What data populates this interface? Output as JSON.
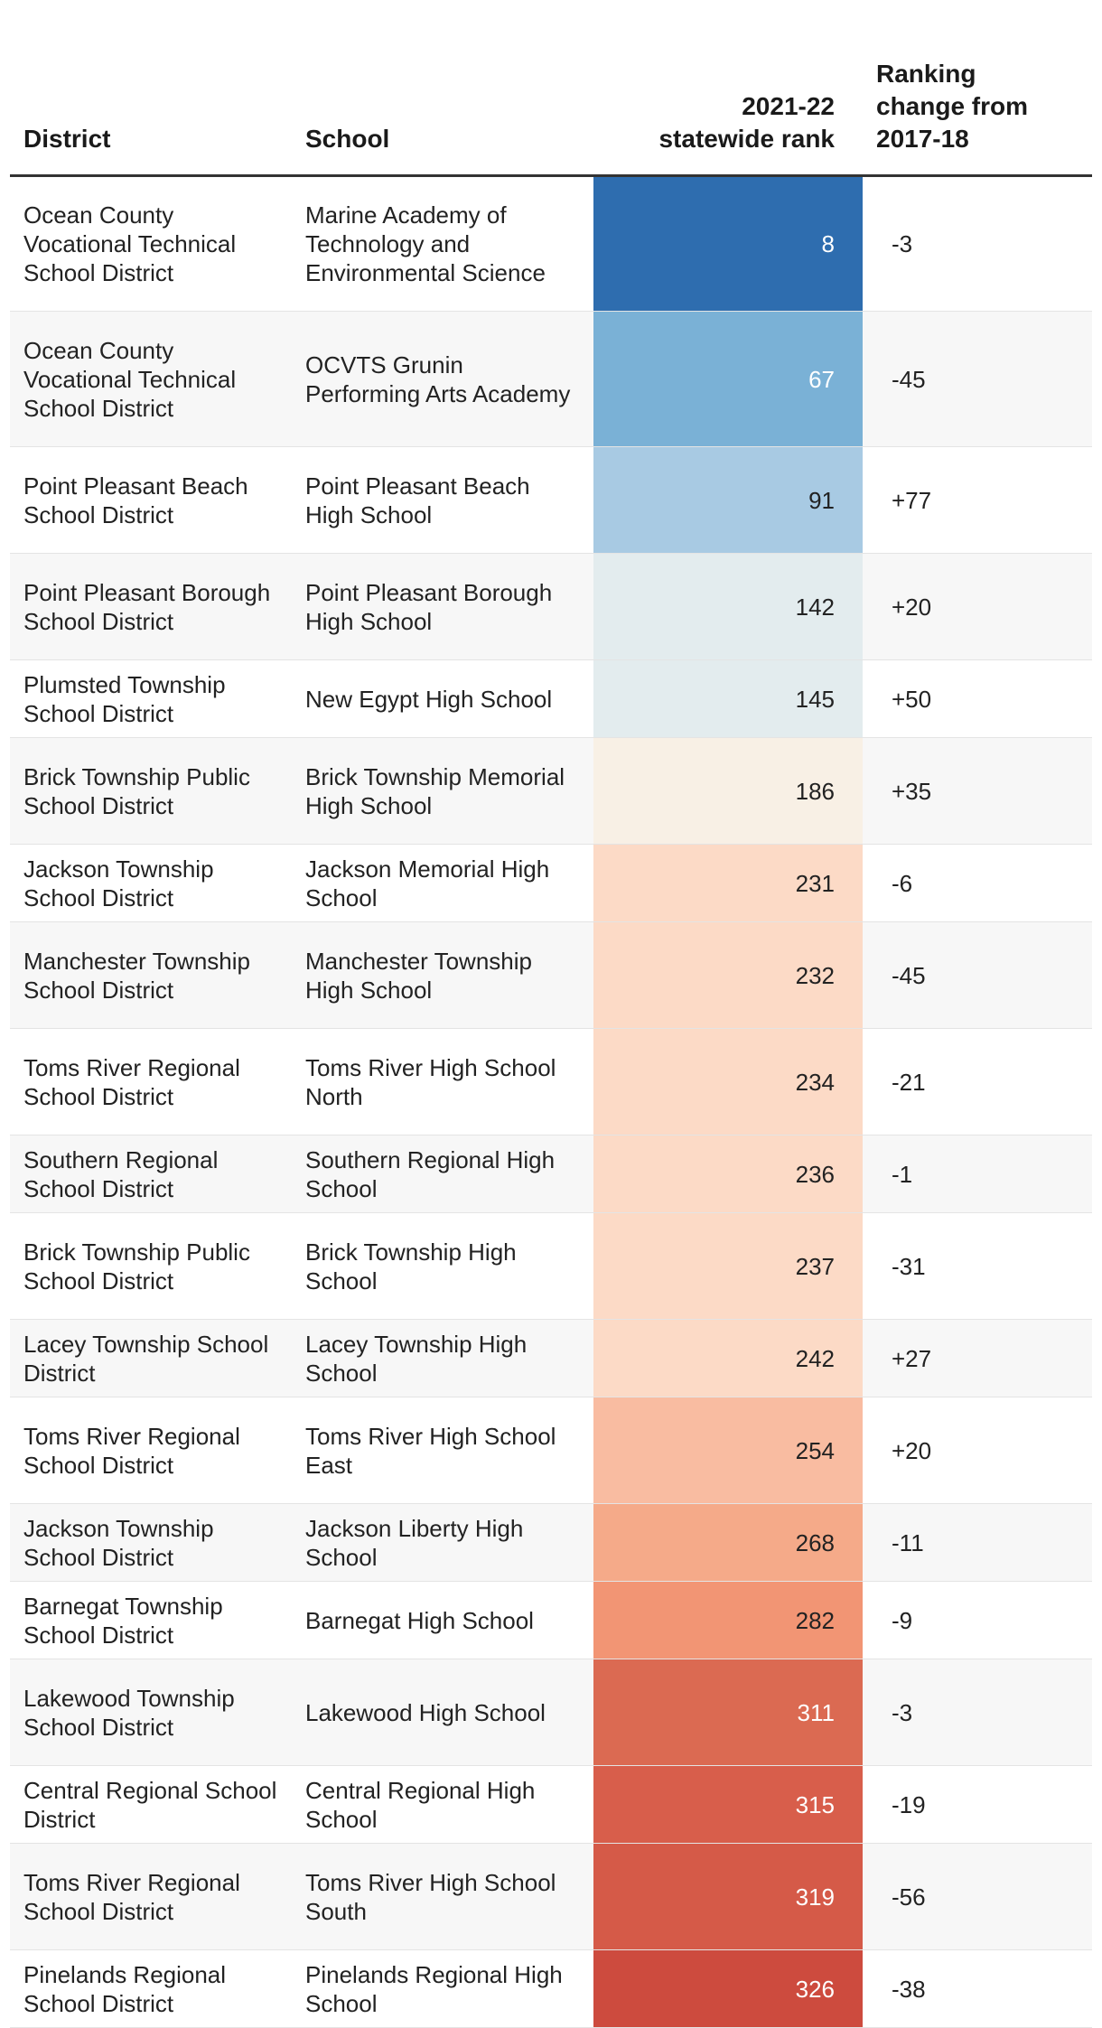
{
  "table": {
    "headers": {
      "district": "District",
      "school": "School",
      "rank_line1": "2021-22",
      "rank_line2": "statewide rank",
      "change_line1": "Ranking",
      "change_line2": "change from",
      "change_line3": "2017-18"
    },
    "rows": [
      {
        "district": "Ocean County Vocational Technical School District",
        "school": "Marine Academy of Technology and Environmental Science",
        "rank": "8",
        "change": "-3",
        "color": "#2e6daf",
        "text_color": "#ffffff"
      },
      {
        "district": "Ocean County Vocational Technical School District",
        "school": "OCVTS Grunin Performing Arts Academy",
        "rank": "67",
        "change": "-45",
        "color": "#7ab1d6",
        "text_color": "#ffffff"
      },
      {
        "district": "Point Pleasant Beach School District",
        "school": "Point Pleasant Beach High School",
        "rank": "91",
        "change": "+77",
        "color": "#a8cae3",
        "text_color": "#222222"
      },
      {
        "district": "Point Pleasant Borough School District",
        "school": "Point Pleasant Borough High School",
        "rank": "142",
        "change": "+20",
        "color": "#e3ecee",
        "text_color": "#222222"
      },
      {
        "district": "Plumsted Township School District",
        "school": "New Egypt High School",
        "rank": "145",
        "change": "+50",
        "color": "#e3ecee",
        "text_color": "#222222"
      },
      {
        "district": "Brick Township Public School District",
        "school": "Brick Township Memorial High School",
        "rank": "186",
        "change": "+35",
        "color": "#f8f0e5",
        "text_color": "#222222"
      },
      {
        "district": "Jackson Township School District",
        "school": "Jackson Memorial High School",
        "rank": "231",
        "change": "-6",
        "color": "#fcdac6",
        "text_color": "#222222"
      },
      {
        "district": "Manchester Township School District",
        "school": "Manchester Township High School",
        "rank": "232",
        "change": "-45",
        "color": "#fcdac6",
        "text_color": "#222222"
      },
      {
        "district": "Toms River Regional School District",
        "school": "Toms River High School North",
        "rank": "234",
        "change": "-21",
        "color": "#fcdac6",
        "text_color": "#222222"
      },
      {
        "district": "Southern Regional School District",
        "school": "Southern Regional High School",
        "rank": "236",
        "change": "-1",
        "color": "#fcdac6",
        "text_color": "#222222"
      },
      {
        "district": "Brick Township Public School District",
        "school": "Brick Township High School",
        "rank": "237",
        "change": "-31",
        "color": "#fcdac6",
        "text_color": "#222222"
      },
      {
        "district": "Lacey Township School District",
        "school": "Lacey Township High School",
        "rank": "242",
        "change": "+27",
        "color": "#fcdac6",
        "text_color": "#222222"
      },
      {
        "district": "Toms River Regional School District",
        "school": "Toms River High School East",
        "rank": "254",
        "change": "+20",
        "color": "#f9bca1",
        "text_color": "#222222"
      },
      {
        "district": "Jackson Township School District",
        "school": "Jackson Liberty High School",
        "rank": "268",
        "change": "-11",
        "color": "#f5aa89",
        "text_color": "#222222"
      },
      {
        "district": "Barnegat Township School District",
        "school": "Barnegat High School",
        "rank": "282",
        "change": "-9",
        "color": "#f29574",
        "text_color": "#222222"
      },
      {
        "district": "Lakewood Township School District",
        "school": "Lakewood High School",
        "rank": "311",
        "change": "-3",
        "color": "#db6a52",
        "text_color": "#ffffff"
      },
      {
        "district": "Central Regional School District",
        "school": "Central Regional High School",
        "rank": "315",
        "change": "-19",
        "color": "#d85e4b",
        "text_color": "#ffffff"
      },
      {
        "district": "Toms River Regional School District",
        "school": "Toms River High School South",
        "rank": "319",
        "change": "-56",
        "color": "#d55a48",
        "text_color": "#ffffff"
      },
      {
        "district": "Pinelands Regional School District",
        "school": "Pinelands Regional High School",
        "rank": "326",
        "change": "-38",
        "color": "#cd4b3e",
        "text_color": "#ffffff"
      }
    ]
  }
}
